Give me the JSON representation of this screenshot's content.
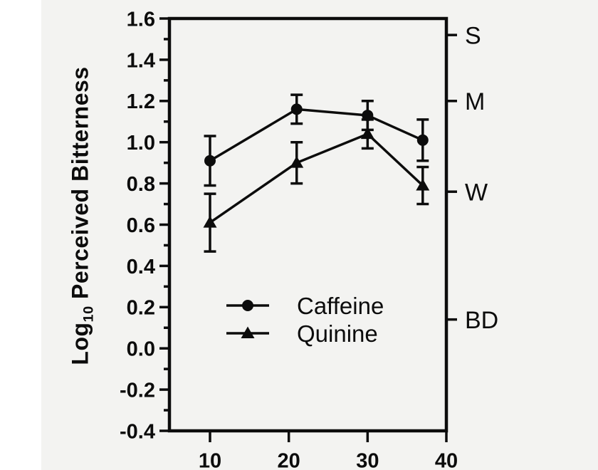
{
  "figure": {
    "background": "#f3f3f1",
    "ink": "#0c0c0c"
  },
  "chart_data": {
    "type": "line",
    "title": "",
    "ylabel_parts": [
      "Log",
      "10",
      " Perceived Bitterness"
    ],
    "xlim": [
      4.85,
      40
    ],
    "ylim": [
      -0.4,
      1.6
    ],
    "y_tick_step": 0.2,
    "y_minor_step": 0.1,
    "y_tick_decimals": 1,
    "x_ticks": [
      10,
      20,
      30,
      40
    ],
    "x": [
      10,
      21,
      30,
      37
    ],
    "series": [
      {
        "name": "Caffeine",
        "marker": "circle",
        "values": [
          0.91,
          1.16,
          1.13,
          1.01
        ],
        "errors": [
          0.12,
          0.07,
          0.07,
          0.1
        ]
      },
      {
        "name": "Quinine",
        "marker": "triangle",
        "values": [
          0.61,
          0.9,
          1.04,
          0.79
        ],
        "errors": [
          0.14,
          0.1,
          0.07,
          0.09
        ]
      }
    ],
    "right_axis": {
      "ticks": [
        {
          "label": "S",
          "value": 1.52
        },
        {
          "label": "M",
          "value": 1.2
        },
        {
          "label": "W",
          "value": 0.76
        },
        {
          "label": "BD",
          "value": 0.14
        }
      ]
    },
    "legend": {
      "position": "inside-lower-left",
      "entries": [
        "Caffeine",
        "Quinine"
      ]
    }
  }
}
